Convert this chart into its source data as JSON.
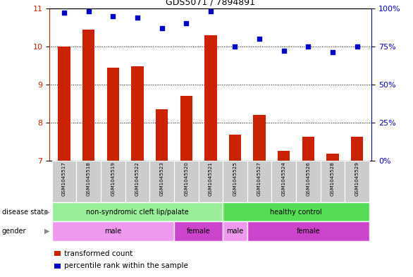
{
  "title": "GDS5071 / 7894891",
  "samples": [
    "GSM1045517",
    "GSM1045518",
    "GSM1045519",
    "GSM1045522",
    "GSM1045523",
    "GSM1045520",
    "GSM1045521",
    "GSM1045525",
    "GSM1045527",
    "GSM1045524",
    "GSM1045526",
    "GSM1045528",
    "GSM1045529"
  ],
  "bar_values": [
    10.0,
    10.45,
    9.45,
    9.48,
    8.35,
    8.7,
    10.3,
    7.68,
    8.2,
    7.25,
    7.62,
    7.18,
    7.62
  ],
  "dot_values": [
    97,
    98,
    95,
    94,
    87,
    90,
    98,
    75,
    80,
    72,
    75,
    71,
    75
  ],
  "ylim_left": [
    7,
    11
  ],
  "ylim_right": [
    0,
    100
  ],
  "yticks_left": [
    7,
    8,
    9,
    10,
    11
  ],
  "yticks_right": [
    0,
    25,
    50,
    75,
    100
  ],
  "ytick_labels_right": [
    "0%",
    "25%",
    "50%",
    "75%",
    "100%"
  ],
  "bar_color": "#cc2200",
  "dot_color": "#0000cc",
  "bar_width": 0.5,
  "grid_color": "black",
  "disease_state_groups": [
    {
      "label": "non-syndromic cleft lip/palate",
      "start": 0,
      "end": 6,
      "color": "#99ee99"
    },
    {
      "label": "healthy control",
      "start": 7,
      "end": 12,
      "color": "#55dd55"
    }
  ],
  "gender_groups": [
    {
      "label": "male",
      "start": 0,
      "end": 4,
      "color": "#ee99ee"
    },
    {
      "label": "female",
      "start": 5,
      "end": 6,
      "color": "#cc44cc"
    },
    {
      "label": "male",
      "start": 7,
      "end": 7,
      "color": "#ee99ee"
    },
    {
      "label": "female",
      "start": 8,
      "end": 12,
      "color": "#cc44cc"
    }
  ],
  "legend_items": [
    {
      "label": "transformed count",
      "color": "#cc2200"
    },
    {
      "label": "percentile rank within the sample",
      "color": "#0000cc"
    }
  ],
  "label_disease_state": "disease state",
  "label_gender": "gender",
  "tick_label_bg": "#cccccc"
}
